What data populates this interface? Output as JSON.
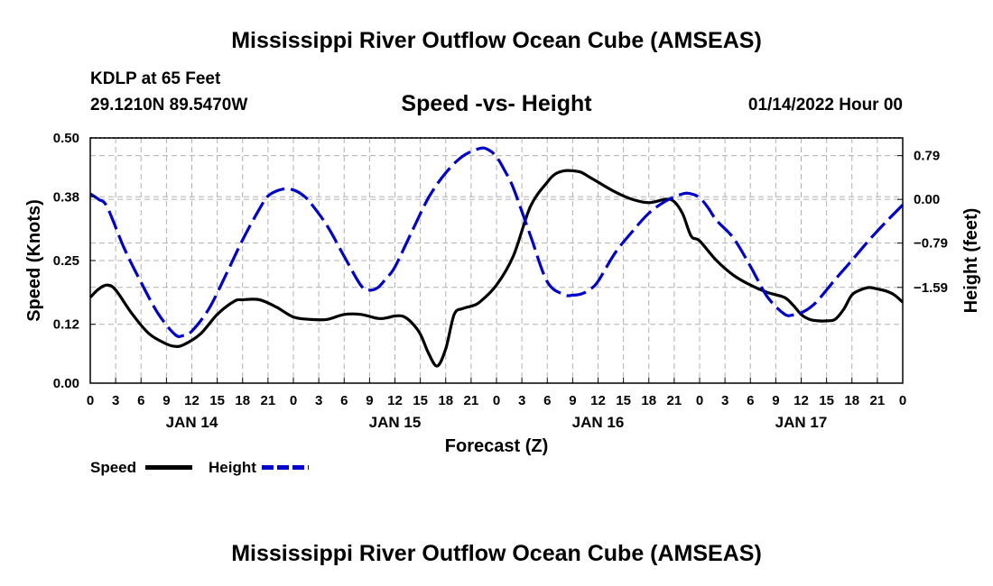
{
  "header": {
    "title": "Mississippi River Outflow Ocean Cube (AMSEAS)",
    "station": "KDLP at 65 Feet",
    "coordinates": "29.1210N  89.5470W",
    "subtitle": "Speed -vs- Height",
    "datetime": "01/14/2022 Hour 00"
  },
  "footer": {
    "title": "Mississippi River Outflow Ocean Cube (AMSEAS)"
  },
  "legend": {
    "speed_label": "Speed",
    "height_label": "Height"
  },
  "colors": {
    "speed": "#000000",
    "height": "#0000cc",
    "grid": "#b0b0b0"
  },
  "chart_data": {
    "type": "line",
    "xlabel": "Forecast (Z)",
    "ylabel": "Speed (Knots)",
    "y2label": "Height (feet)",
    "xlim": [
      0,
      96
    ],
    "ylim": [
      0,
      0.5
    ],
    "y2lim": [
      -3.32,
      1.11
    ],
    "x_ticks": [
      0,
      3,
      6,
      9,
      12,
      15,
      18,
      21,
      24,
      27,
      30,
      33,
      36,
      39,
      42,
      45,
      48,
      51,
      54,
      57,
      60,
      63,
      66,
      69,
      72,
      75,
      78,
      81,
      84,
      87,
      90,
      93,
      96
    ],
    "x_tick_labels": [
      "0",
      "3",
      "6",
      "9",
      "12",
      "15",
      "18",
      "21",
      "0",
      "3",
      "6",
      "9",
      "12",
      "15",
      "18",
      "21",
      "0",
      "3",
      "6",
      "9",
      "12",
      "15",
      "18",
      "21",
      "0",
      "3",
      "6",
      "9",
      "12",
      "15",
      "18",
      "21",
      "0"
    ],
    "day_labels": [
      {
        "x": 12,
        "label": "JAN 14"
      },
      {
        "x": 36,
        "label": "JAN 15"
      },
      {
        "x": 60,
        "label": "JAN 16"
      },
      {
        "x": 84,
        "label": "JAN 17"
      }
    ],
    "y_ticks": [
      0.0,
      0.12,
      0.25,
      0.38,
      0.5
    ],
    "y_tick_labels": [
      "0.00",
      "0.12",
      "0.25",
      "0.38",
      "0.50"
    ],
    "y2_ticks": [
      0.79,
      0.0,
      -0.79,
      -1.59
    ],
    "y2_tick_labels": [
      "0.79",
      "0.00",
      "−0.79",
      "−1.59"
    ],
    "grid": true,
    "series": [
      {
        "name": "Speed",
        "axis": "left",
        "style": "solid",
        "x": [
          0,
          1,
          2,
          3,
          5,
          7,
          9,
          10,
          11,
          13,
          15,
          17,
          18,
          20,
          22,
          24,
          26,
          28,
          30,
          32,
          34,
          35,
          36,
          37,
          38,
          39,
          40,
          41,
          42,
          43,
          44,
          45,
          46,
          48,
          50,
          52,
          54,
          55,
          56,
          57,
          58,
          59,
          60,
          62,
          64,
          66,
          68,
          69,
          70,
          71,
          72,
          74,
          76,
          78,
          80,
          82,
          83,
          84,
          85,
          86,
          87,
          88,
          89,
          90,
          91,
          92,
          93,
          94,
          95,
          96
        ],
        "values": [
          0.175,
          0.192,
          0.2,
          0.19,
          0.14,
          0.1,
          0.08,
          0.075,
          0.078,
          0.1,
          0.14,
          0.167,
          0.17,
          0.17,
          0.155,
          0.135,
          0.13,
          0.13,
          0.14,
          0.14,
          0.132,
          0.133,
          0.137,
          0.136,
          0.123,
          0.1,
          0.06,
          0.035,
          0.07,
          0.14,
          0.152,
          0.157,
          0.165,
          0.2,
          0.26,
          0.36,
          0.41,
          0.427,
          0.433,
          0.433,
          0.43,
          0.42,
          0.41,
          0.39,
          0.375,
          0.368,
          0.375,
          0.37,
          0.345,
          0.3,
          0.29,
          0.25,
          0.22,
          0.2,
          0.185,
          0.175,
          0.16,
          0.14,
          0.13,
          0.127,
          0.127,
          0.13,
          0.15,
          0.18,
          0.19,
          0.195,
          0.192,
          0.188,
          0.18,
          0.165
        ]
      },
      {
        "name": "Height",
        "axis": "right",
        "style": "dashed",
        "x": [
          0,
          1,
          2,
          4,
          6,
          8,
          10,
          11,
          12,
          14,
          16,
          18,
          20,
          21,
          22,
          23,
          24,
          25,
          26,
          28,
          30,
          32,
          33,
          34,
          35,
          36,
          38,
          40,
          42,
          44,
          46,
          47,
          48,
          49,
          50,
          52,
          54,
          56,
          57,
          58,
          59,
          60,
          62,
          64,
          66,
          68,
          70,
          71,
          72,
          73,
          74,
          76,
          78,
          80,
          82,
          83,
          84,
          85,
          86,
          88,
          90,
          92,
          94,
          96
        ],
        "values": [
          0.1,
          0.0,
          -0.14,
          -0.88,
          -1.5,
          -2.06,
          -2.44,
          -2.46,
          -2.38,
          -1.98,
          -1.37,
          -0.73,
          -0.17,
          0.06,
          0.15,
          0.19,
          0.17,
          0.09,
          -0.06,
          -0.48,
          -1.03,
          -1.56,
          -1.64,
          -1.59,
          -1.42,
          -1.22,
          -0.58,
          0.04,
          0.48,
          0.78,
          0.92,
          0.9,
          0.77,
          0.51,
          0.2,
          -0.65,
          -1.49,
          -1.72,
          -1.73,
          -1.71,
          -1.63,
          -1.48,
          -0.97,
          -0.59,
          -0.25,
          -0.03,
          0.1,
          0.1,
          0.03,
          -0.15,
          -0.38,
          -0.7,
          -1.21,
          -1.76,
          -2.07,
          -2.09,
          -2.05,
          -1.96,
          -1.82,
          -1.45,
          -1.1,
          -0.74,
          -0.41,
          -0.1
        ]
      }
    ]
  }
}
